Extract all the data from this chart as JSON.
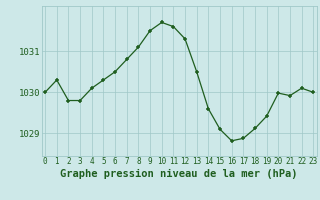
{
  "hours": [
    0,
    1,
    2,
    3,
    4,
    5,
    6,
    7,
    8,
    9,
    10,
    11,
    12,
    13,
    14,
    15,
    16,
    17,
    18,
    19,
    20,
    21,
    22,
    23
  ],
  "pressure": [
    1030.0,
    1030.3,
    1029.8,
    1029.8,
    1030.1,
    1030.3,
    1030.5,
    1030.8,
    1031.1,
    1031.5,
    1031.7,
    1031.6,
    1031.3,
    1030.5,
    1029.6,
    1029.1,
    1028.82,
    1028.88,
    1029.12,
    1029.42,
    1029.98,
    1029.92,
    1030.1,
    1030.0
  ],
  "line_color": "#1f5e1f",
  "marker_color": "#1f5e1f",
  "bg_color": "#cde8e8",
  "grid_color": "#a0c8c8",
  "title": "Graphe pression niveau de la mer (hPa)",
  "ylabel_ticks": [
    1029,
    1030,
    1031
  ],
  "ylim": [
    1028.45,
    1032.1
  ],
  "xlim": [
    -0.3,
    23.3
  ],
  "title_color": "#1f5e1f",
  "title_fontsize": 7.5,
  "tick_fontsize": 5.5,
  "ytick_fontsize": 6.5
}
